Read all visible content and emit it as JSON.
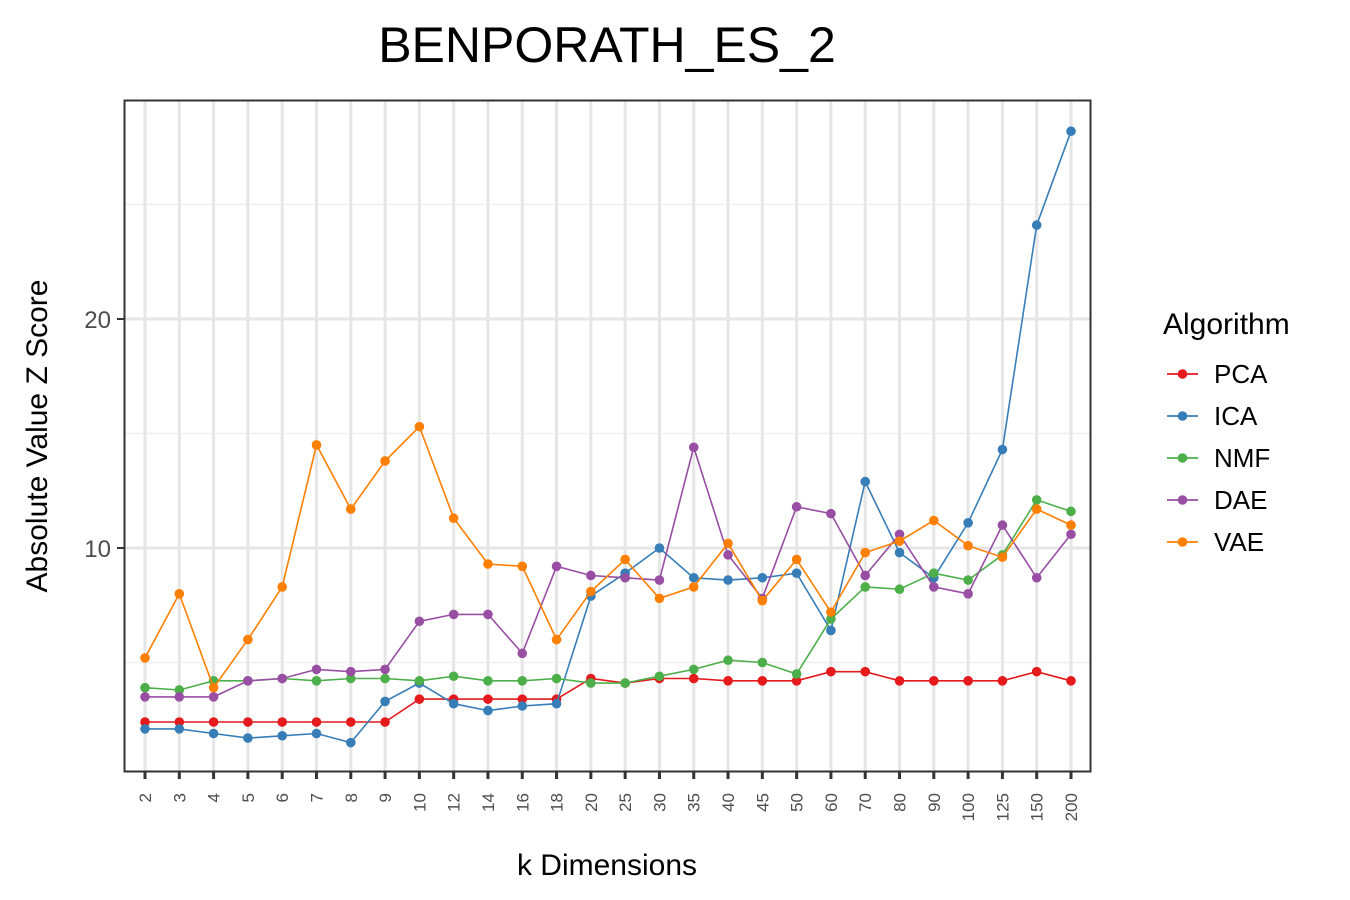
{
  "chart_data": {
    "type": "line",
    "title": "BENPORATH_ES_2",
    "xlabel": "k Dimensions",
    "ylabel": "Absolute Value Z Score",
    "categories": [
      "2",
      "3",
      "4",
      "5",
      "6",
      "7",
      "8",
      "9",
      "10",
      "12",
      "14",
      "16",
      "18",
      "20",
      "25",
      "30",
      "35",
      "40",
      "45",
      "50",
      "60",
      "70",
      "80",
      "90",
      "100",
      "125",
      "150",
      "200"
    ],
    "ylim": [
      1,
      30
    ],
    "yticks": [
      10,
      20
    ],
    "grid": true,
    "legend": {
      "title": "Algorithm",
      "placement": "right"
    },
    "series": [
      {
        "name": "PCA",
        "color": "#E41A1C",
        "values": [
          2.4,
          2.4,
          2.4,
          2.4,
          2.4,
          2.4,
          2.4,
          2.4,
          3.4,
          3.4,
          3.4,
          3.4,
          3.4,
          4.3,
          4.1,
          4.3,
          4.3,
          4.2,
          4.2,
          4.2,
          4.6,
          4.6,
          4.2,
          4.2,
          4.2,
          4.2,
          4.6,
          4.2
        ]
      },
      {
        "name": "ICA",
        "color": "#377EB8",
        "values": [
          2.1,
          2.1,
          1.9,
          1.7,
          1.8,
          1.9,
          1.5,
          3.3,
          4.1,
          3.2,
          2.9,
          3.1,
          3.2,
          7.9,
          8.9,
          10.0,
          8.7,
          8.6,
          8.7,
          8.9,
          6.4,
          12.9,
          9.8,
          8.7,
          11.1,
          14.3,
          24.1,
          28.2
        ]
      },
      {
        "name": "NMF",
        "color": "#4DAF4A",
        "values": [
          3.9,
          3.8,
          4.2,
          4.2,
          4.3,
          4.2,
          4.3,
          4.3,
          4.2,
          4.4,
          4.2,
          4.2,
          4.3,
          4.1,
          4.1,
          4.4,
          4.7,
          5.1,
          5.0,
          4.5,
          6.9,
          8.3,
          8.2,
          8.9,
          8.6,
          9.7,
          12.1,
          11.6
        ]
      },
      {
        "name": "DAE",
        "color": "#984EA3",
        "values": [
          3.5,
          3.5,
          3.5,
          4.2,
          4.3,
          4.7,
          4.6,
          4.7,
          6.8,
          7.1,
          7.1,
          5.4,
          9.2,
          8.8,
          8.7,
          8.6,
          14.4,
          9.7,
          7.8,
          11.8,
          11.5,
          8.8,
          10.6,
          8.3,
          8.0,
          11.0,
          8.7,
          10.6
        ]
      },
      {
        "name": "VAE",
        "color": "#FF7F00",
        "values": [
          5.2,
          8.0,
          3.9,
          6.0,
          8.3,
          14.5,
          11.7,
          13.8,
          15.3,
          11.3,
          9.3,
          9.2,
          6.0,
          8.1,
          9.5,
          7.8,
          8.3,
          10.2,
          7.7,
          9.5,
          7.2,
          9.8,
          10.3,
          11.2,
          10.1,
          9.6,
          11.7,
          11.0
        ]
      }
    ]
  }
}
